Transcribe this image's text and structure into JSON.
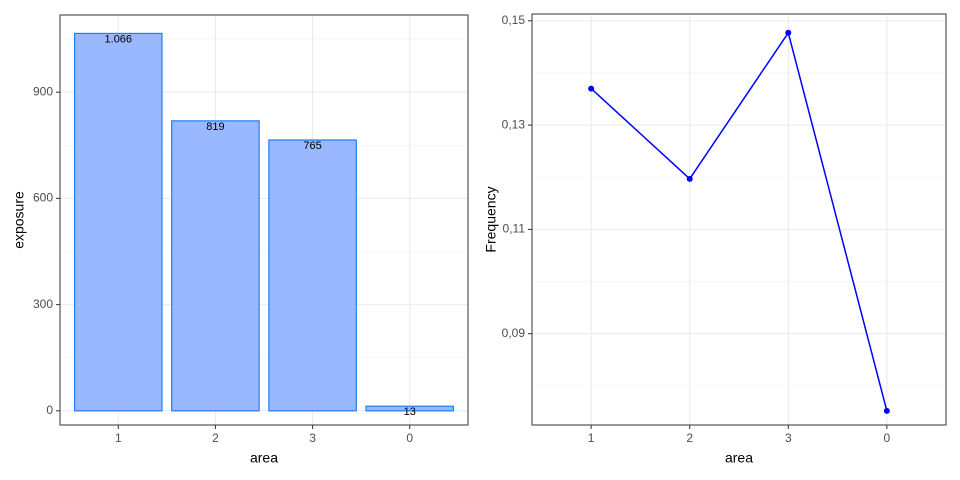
{
  "chart_data": [
    {
      "type": "bar",
      "categories": [
        "1",
        "2",
        "3",
        "0"
      ],
      "values": [
        1066,
        819,
        765,
        13
      ],
      "value_labels": [
        "1.066",
        "819",
        "765",
        "13"
      ],
      "color": "#99b8ff",
      "edge_color": "#1e7ff0",
      "ylim": [
        -40,
        1118
      ],
      "yticks": [
        0,
        300,
        600,
        900
      ],
      "grid": true,
      "xlabel": "area",
      "ylabel": "exposure"
    },
    {
      "type": "line",
      "categories": [
        "1",
        "2",
        "3",
        "0"
      ],
      "values": [
        0.137,
        0.1197,
        0.1477,
        0.0752
      ],
      "color": "#0000ff",
      "ylim": [
        0.0725,
        0.1513
      ],
      "yticks": [
        {
          "value": 0.09,
          "label": "0,09"
        },
        {
          "value": 0.11,
          "label": "0,11"
        },
        {
          "value": 0.13,
          "label": "0,13"
        },
        {
          "value": 0.15,
          "label": "0,15"
        }
      ],
      "grid": true,
      "xlabel": "area",
      "ylabel": "Frequency"
    }
  ]
}
